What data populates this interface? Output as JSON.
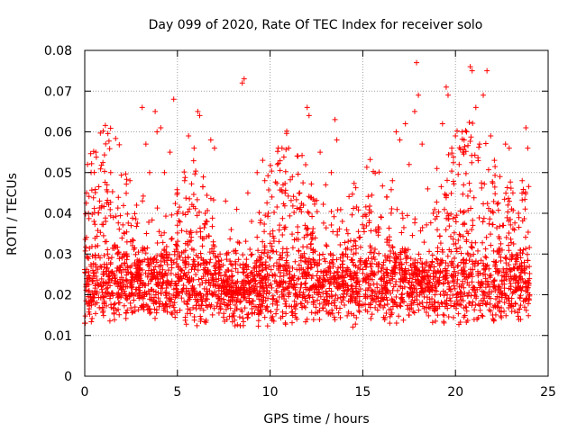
{
  "chart_data": {
    "type": "scatter",
    "title": "Day 099 of 2020, Rate Of TEC Index for receiver solo",
    "xlabel": "GPS time / hours",
    "ylabel": "ROTI / TECUs",
    "xlim": [
      0,
      25
    ],
    "ylim": [
      0,
      0.08
    ],
    "xticks": [
      0,
      5,
      10,
      15,
      20,
      25
    ],
    "xtick_labels": [
      "0",
      "5",
      "10",
      "15",
      "20",
      "25"
    ],
    "yticks": [
      0,
      0.01,
      0.02,
      0.03,
      0.04,
      0.05,
      0.06,
      0.07,
      0.08
    ],
    "ytick_labels": [
      "0",
      "0.01",
      "0.02",
      "0.03",
      "0.04",
      "0.05",
      "0.06",
      "0.07",
      "0.08"
    ],
    "grid": true,
    "marker": "plus",
    "color": "#ff0000",
    "points": [
      [
        0.0,
        0.013
      ],
      [
        0.1,
        0.045
      ],
      [
        0.15,
        0.052
      ],
      [
        0.2,
        0.04
      ],
      [
        0.3,
        0.02
      ],
      [
        0.5,
        0.038
      ],
      [
        0.6,
        0.055
      ],
      [
        0.8,
        0.043
      ],
      [
        1.0,
        0.025
      ],
      [
        1.2,
        0.047
      ],
      [
        1.4,
        0.05
      ],
      [
        1.6,
        0.032
      ],
      [
        1.9,
        0.022
      ],
      [
        2.2,
        0.03
      ],
      [
        2.5,
        0.037
      ],
      [
        2.8,
        0.042
      ],
      [
        3.1,
        0.066
      ],
      [
        3.3,
        0.057
      ],
      [
        3.5,
        0.05
      ],
      [
        3.8,
        0.065
      ],
      [
        3.9,
        0.06
      ],
      [
        4.1,
        0.061
      ],
      [
        4.3,
        0.05
      ],
      [
        4.6,
        0.055
      ],
      [
        4.8,
        0.068
      ],
      [
        5.0,
        0.045
      ],
      [
        5.3,
        0.04
      ],
      [
        5.6,
        0.059
      ],
      [
        5.9,
        0.056
      ],
      [
        6.1,
        0.065
      ],
      [
        6.2,
        0.064
      ],
      [
        6.5,
        0.04
      ],
      [
        6.8,
        0.058
      ],
      [
        7.0,
        0.056
      ],
      [
        7.3,
        0.03
      ],
      [
        7.6,
        0.043
      ],
      [
        7.9,
        0.036
      ],
      [
        8.2,
        0.041
      ],
      [
        8.5,
        0.072
      ],
      [
        8.6,
        0.073
      ],
      [
        8.8,
        0.045
      ],
      [
        9.0,
        0.038
      ],
      [
        9.3,
        0.05
      ],
      [
        9.6,
        0.053
      ],
      [
        9.9,
        0.04
      ],
      [
        10.1,
        0.044
      ],
      [
        10.4,
        0.052
      ],
      [
        10.7,
        0.047
      ],
      [
        11.0,
        0.056
      ],
      [
        11.2,
        0.049
      ],
      [
        11.5,
        0.054
      ],
      [
        11.8,
        0.042
      ],
      [
        12.0,
        0.066
      ],
      [
        12.1,
        0.064
      ],
      [
        12.4,
        0.043
      ],
      [
        12.7,
        0.055
      ],
      [
        13.0,
        0.047
      ],
      [
        13.3,
        0.05
      ],
      [
        13.5,
        0.063
      ],
      [
        13.6,
        0.058
      ],
      [
        13.9,
        0.038
      ],
      [
        14.2,
        0.035
      ],
      [
        14.5,
        0.03
      ],
      [
        14.8,
        0.034
      ],
      [
        15.1,
        0.028
      ],
      [
        15.4,
        0.032
      ],
      [
        15.7,
        0.036
      ],
      [
        16.0,
        0.039
      ],
      [
        16.3,
        0.044
      ],
      [
        16.6,
        0.048
      ],
      [
        16.8,
        0.06
      ],
      [
        17.0,
        0.058
      ],
      [
        17.3,
        0.062
      ],
      [
        17.5,
        0.052
      ],
      [
        17.8,
        0.065
      ],
      [
        17.9,
        0.077
      ],
      [
        18.0,
        0.069
      ],
      [
        18.2,
        0.057
      ],
      [
        18.5,
        0.046
      ],
      [
        18.8,
        0.04
      ],
      [
        19.0,
        0.051
      ],
      [
        19.3,
        0.062
      ],
      [
        19.5,
        0.071
      ],
      [
        19.6,
        0.069
      ],
      [
        19.8,
        0.056
      ],
      [
        20.0,
        0.059
      ],
      [
        20.2,
        0.052
      ],
      [
        20.4,
        0.055
      ],
      [
        20.6,
        0.06
      ],
      [
        20.8,
        0.076
      ],
      [
        20.9,
        0.075
      ],
      [
        21.1,
        0.066
      ],
      [
        21.3,
        0.057
      ],
      [
        21.5,
        0.069
      ],
      [
        21.7,
        0.075
      ],
      [
        21.9,
        0.059
      ],
      [
        22.1,
        0.053
      ],
      [
        22.4,
        0.049
      ],
      [
        22.7,
        0.057
      ],
      [
        22.9,
        0.056
      ],
      [
        23.1,
        0.045
      ],
      [
        23.4,
        0.04
      ],
      [
        23.6,
        0.048
      ],
      [
        23.8,
        0.061
      ],
      [
        23.9,
        0.056
      ],
      [
        24.0,
        0.02
      ]
    ]
  }
}
